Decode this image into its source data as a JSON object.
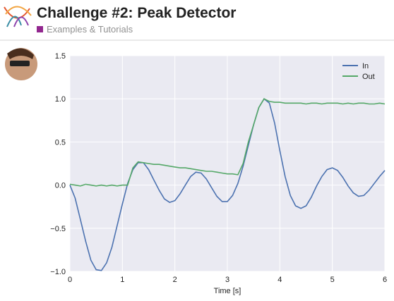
{
  "header": {
    "title": "Challenge #2: Peak Detector",
    "category": "Examples & Tutorials"
  },
  "chart_data": {
    "type": "line",
    "x_label": "Time [s]",
    "x": [
      0,
      0.1,
      0.2,
      0.3,
      0.4,
      0.5,
      0.6,
      0.7,
      0.8,
      0.9,
      1.0,
      1.1,
      1.2,
      1.3,
      1.4,
      1.5,
      1.6,
      1.7,
      1.8,
      1.9,
      2.0,
      2.1,
      2.2,
      2.3,
      2.4,
      2.5,
      2.6,
      2.7,
      2.8,
      2.9,
      3.0,
      3.1,
      3.2,
      3.3,
      3.4,
      3.5,
      3.6,
      3.7,
      3.8,
      3.9,
      4.0,
      4.1,
      4.2,
      4.3,
      4.4,
      4.5,
      4.6,
      4.7,
      4.8,
      4.9,
      5.0,
      5.1,
      5.2,
      5.3,
      5.4,
      5.5,
      5.6,
      5.7,
      5.8,
      5.9,
      6.0
    ],
    "series": [
      {
        "name": "In",
        "color": "#4c72b0",
        "values": [
          0,
          -0.15,
          -0.4,
          -0.65,
          -0.87,
          -0.98,
          -0.99,
          -0.9,
          -0.72,
          -0.47,
          -0.22,
          0.02,
          0.18,
          0.26,
          0.26,
          0.18,
          0.06,
          -0.06,
          -0.16,
          -0.2,
          -0.18,
          -0.1,
          0.0,
          0.1,
          0.15,
          0.14,
          0.07,
          -0.03,
          -0.13,
          -0.19,
          -0.19,
          -0.12,
          0.02,
          0.22,
          0.46,
          0.7,
          0.9,
          1.0,
          0.95,
          0.72,
          0.4,
          0.1,
          -0.12,
          -0.24,
          -0.27,
          -0.24,
          -0.14,
          -0.01,
          0.1,
          0.18,
          0.2,
          0.17,
          0.09,
          -0.01,
          -0.09,
          -0.13,
          -0.12,
          -0.06,
          0.02,
          0.1,
          0.17
        ]
      },
      {
        "name": "Out",
        "color": "#55a868",
        "values": [
          0.01,
          0.0,
          -0.01,
          0.01,
          0.0,
          -0.01,
          0.0,
          -0.01,
          0.0,
          -0.01,
          0.0,
          0.0,
          0.2,
          0.27,
          0.26,
          0.25,
          0.24,
          0.24,
          0.23,
          0.22,
          0.21,
          0.2,
          0.2,
          0.19,
          0.18,
          0.17,
          0.16,
          0.16,
          0.15,
          0.14,
          0.13,
          0.13,
          0.12,
          0.25,
          0.5,
          0.7,
          0.9,
          1.0,
          0.97,
          0.96,
          0.96,
          0.95,
          0.95,
          0.95,
          0.95,
          0.94,
          0.95,
          0.95,
          0.94,
          0.95,
          0.95,
          0.95,
          0.94,
          0.95,
          0.94,
          0.95,
          0.95,
          0.94,
          0.94,
          0.95,
          0.94
        ]
      }
    ],
    "xlim": [
      0,
      6
    ],
    "xticks": [
      0,
      1,
      2,
      3,
      4,
      5,
      6
    ],
    "ylim": [
      -1,
      1.5
    ],
    "yticks": [
      {
        "value": -1,
        "label": "−1.0"
      },
      {
        "value": -0.5,
        "label": "−0.5"
      },
      {
        "value": 0,
        "label": "0.0"
      },
      {
        "value": 0.5,
        "label": "0.5"
      },
      {
        "value": 1,
        "label": "1.0"
      },
      {
        "value": 1.5,
        "label": "1.5"
      }
    ],
    "grid": true,
    "legend": "upper right"
  }
}
